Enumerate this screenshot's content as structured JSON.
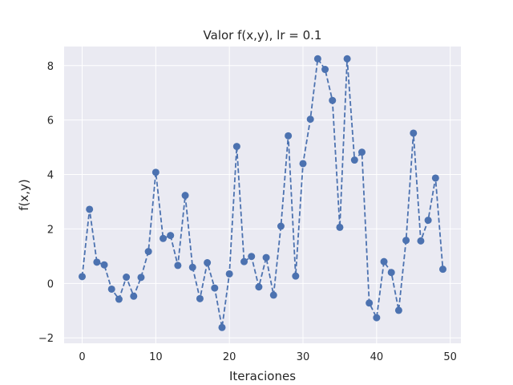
{
  "chart_data": {
    "type": "line",
    "title": "Valor f(x,y), lr = 0.1",
    "xlabel": "Iteraciones",
    "ylabel": "f(x,y)",
    "xlim": [
      -2.45,
      51.45
    ],
    "ylim": [
      -2.2,
      8.7
    ],
    "xticks": [
      0,
      10,
      20,
      30,
      40,
      50
    ],
    "yticks": [
      -2,
      0,
      2,
      4,
      6,
      8
    ],
    "xtick_labels": [
      "0",
      "10",
      "20",
      "30",
      "40",
      "50"
    ],
    "ytick_labels": [
      "−2",
      "0",
      "2",
      "4",
      "6",
      "8"
    ],
    "grid": true,
    "colors": {
      "background": "#eaeaf2",
      "series": "#4c72b0",
      "grid": "#ffffff"
    },
    "series": [
      {
        "x": [
          0,
          1,
          2,
          3,
          4,
          5,
          6,
          7,
          8,
          9,
          10,
          11,
          12,
          13,
          14,
          15,
          16,
          17,
          18,
          19,
          20,
          21,
          22,
          23,
          24,
          25,
          26,
          27,
          28,
          29,
          30,
          31,
          32,
          33,
          34,
          35,
          36,
          37,
          38,
          39,
          40,
          41,
          42,
          43,
          44,
          45,
          46,
          47,
          48,
          49
        ],
        "values": [
          0.25,
          2.72,
          0.78,
          0.68,
          -0.21,
          -0.58,
          0.23,
          -0.47,
          0.22,
          1.17,
          4.08,
          1.65,
          1.76,
          0.66,
          3.23,
          0.59,
          -0.56,
          0.76,
          -0.17,
          -1.62,
          0.35,
          5.03,
          0.8,
          0.99,
          -0.13,
          0.95,
          -0.43,
          2.1,
          5.42,
          0.27,
          4.4,
          6.03,
          8.25,
          7.86,
          6.72,
          2.06,
          8.25,
          4.53,
          4.82,
          -0.72,
          -1.26,
          0.8,
          0.4,
          -0.99,
          1.58,
          5.52,
          1.56,
          2.32,
          3.87,
          0.52
        ]
      }
    ]
  }
}
